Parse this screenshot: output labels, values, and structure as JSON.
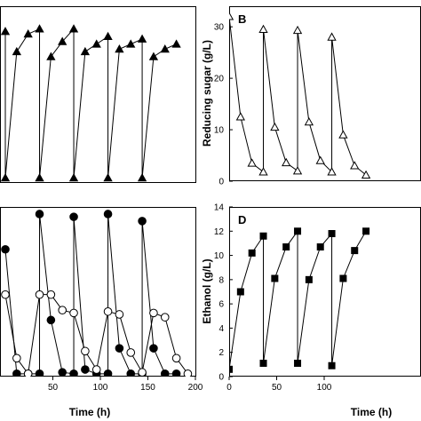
{
  "chart_data": [
    {
      "panel": "A",
      "type": "line",
      "marker": "filled-triangle",
      "panel_label": "",
      "xlabel": "",
      "ylabel": "",
      "x_ticks": [],
      "y_ticks": [],
      "xlim": [
        0,
        200
      ],
      "ylim": [
        0,
        35
      ],
      "series": [
        {
          "name": "",
          "points": [
            [
              0,
              30
            ],
            [
              0,
              1
            ],
            [
              12,
              26
            ],
            [
              24,
              29.5
            ],
            [
              36,
              30.5
            ],
            [
              36,
              1
            ],
            [
              48,
              25
            ],
            [
              60,
              28
            ],
            [
              72,
              30.5
            ],
            [
              72,
              1
            ],
            [
              84,
              26
            ],
            [
              96,
              27.5
            ],
            [
              108,
              29
            ],
            [
              108,
              1
            ],
            [
              120,
              26.5
            ],
            [
              132,
              27.5
            ],
            [
              144,
              28.5
            ],
            [
              144,
              1
            ],
            [
              156,
              25
            ],
            [
              168,
              26.5
            ],
            [
              180,
              27.5
            ]
          ]
        }
      ]
    },
    {
      "panel": "B",
      "type": "line",
      "marker": "open-triangle",
      "panel_label": "B",
      "xlabel": "",
      "ylabel": "Reducing sugar (g/L)",
      "x_ticks": [],
      "y_ticks": [
        "0",
        "10",
        "20",
        "30"
      ],
      "xlim": [
        0,
        140
      ],
      "ylim": [
        0,
        34
      ],
      "series": [
        {
          "name": "",
          "points": [
            [
              0,
              32
            ],
            [
              12,
              12.5
            ],
            [
              24,
              3.5
            ],
            [
              36,
              1.8
            ],
            [
              36,
              29.5
            ],
            [
              48,
              10.5
            ],
            [
              60,
              3.6
            ],
            [
              72,
              2
            ],
            [
              72,
              29.3
            ],
            [
              84,
              11.5
            ],
            [
              96,
              4
            ],
            [
              108,
              1.8
            ],
            [
              108,
              28
            ],
            [
              120,
              9
            ],
            [
              132,
              3
            ],
            [
              144,
              1.2
            ]
          ]
        }
      ]
    },
    {
      "panel": "C",
      "type": "line",
      "panel_label": "",
      "xlabel": "Time (h)",
      "ylabel": "",
      "x_ticks": [
        "50",
        "100",
        "150",
        "200"
      ],
      "y_ticks": [],
      "xlim": [
        0,
        200
      ],
      "ylim": [
        0,
        12
      ],
      "series": [
        {
          "name": "",
          "marker": "filled-circle",
          "points": [
            [
              0,
              9
            ],
            [
              12,
              0.2
            ],
            [
              24,
              0.2
            ],
            [
              36,
              0.2
            ],
            [
              36,
              11.5
            ],
            [
              48,
              4
            ],
            [
              60,
              0.3
            ],
            [
              72,
              0.2
            ],
            [
              72,
              11.3
            ],
            [
              84,
              0.5
            ],
            [
              96,
              0.2
            ],
            [
              108,
              0.2
            ],
            [
              108,
              11.5
            ],
            [
              120,
              2
            ],
            [
              132,
              0.2
            ],
            [
              144,
              0.2
            ],
            [
              144,
              11
            ],
            [
              156,
              2
            ],
            [
              168,
              0.2
            ],
            [
              180,
              0.2
            ]
          ]
        },
        {
          "name": "",
          "marker": "open-circle",
          "points": [
            [
              0,
              5.8
            ],
            [
              12,
              1.3
            ],
            [
              24,
              0.2
            ],
            [
              36,
              5.8
            ],
            [
              48,
              5.8
            ],
            [
              60,
              4.7
            ],
            [
              72,
              4.5
            ],
            [
              84,
              1.8
            ],
            [
              96,
              0.5
            ],
            [
              108,
              4.6
            ],
            [
              120,
              4.4
            ],
            [
              132,
              1.7
            ],
            [
              144,
              0.3
            ],
            [
              156,
              4.5
            ],
            [
              168,
              4.2
            ],
            [
              180,
              1.3
            ],
            [
              192,
              0.2
            ]
          ]
        }
      ]
    },
    {
      "panel": "D",
      "type": "line",
      "marker": "filled-square",
      "panel_label": "D",
      "xlabel": "Time (h)",
      "ylabel": "Ethanol (g/L)",
      "x_ticks": [
        "0",
        "50",
        "100"
      ],
      "y_ticks": [
        "0",
        "2",
        "4",
        "6",
        "8",
        "10",
        "12",
        "14"
      ],
      "xlim": [
        0,
        140
      ],
      "ylim": [
        0,
        14
      ],
      "series": [
        {
          "name": "",
          "points": [
            [
              0,
              0.6
            ],
            [
              12,
              7
            ],
            [
              24,
              10.2
            ],
            [
              36,
              11.6
            ],
            [
              36,
              1.1
            ],
            [
              48,
              8.1
            ],
            [
              60,
              10.7
            ],
            [
              72,
              12
            ],
            [
              72,
              1.1
            ],
            [
              84,
              8
            ],
            [
              96,
              10.7
            ],
            [
              108,
              11.8
            ],
            [
              108,
              0.9
            ],
            [
              120,
              8.1
            ],
            [
              132,
              10.4
            ],
            [
              144,
              12
            ]
          ]
        }
      ]
    }
  ]
}
